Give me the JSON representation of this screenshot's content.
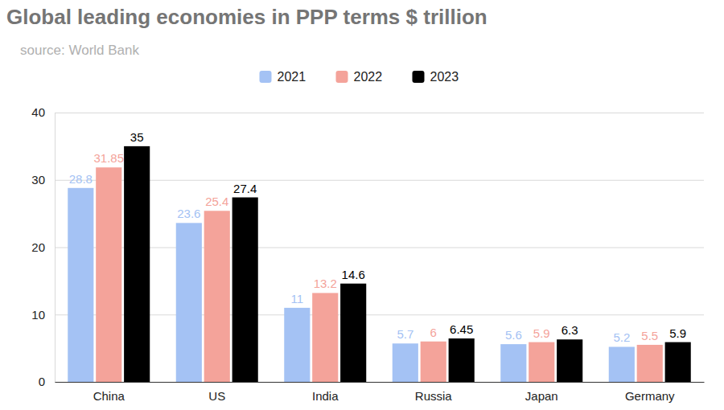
{
  "chart_data": {
    "type": "bar",
    "title": "Global leading economies in PPP terms $ trillion",
    "subtitle": "source: World Bank",
    "categories": [
      "China",
      "US",
      "India",
      "Russia",
      "Japan",
      "Germany"
    ],
    "series": [
      {
        "name": "2021",
        "color": "#a4c2f4",
        "values": [
          28.8,
          23.6,
          11,
          5.7,
          5.6,
          5.2
        ]
      },
      {
        "name": "2022",
        "color": "#f4a39a",
        "values": [
          31.85,
          25.4,
          13.2,
          6,
          5.9,
          5.5
        ]
      },
      {
        "name": "2023",
        "color": "#000000",
        "values": [
          35,
          27.4,
          14.6,
          6.45,
          6.3,
          5.9
        ]
      }
    ],
    "ylim": [
      0,
      40
    ],
    "yticks": [
      0,
      10,
      20,
      30,
      40
    ],
    "grid": true,
    "legend": "top",
    "data_labels": true
  }
}
